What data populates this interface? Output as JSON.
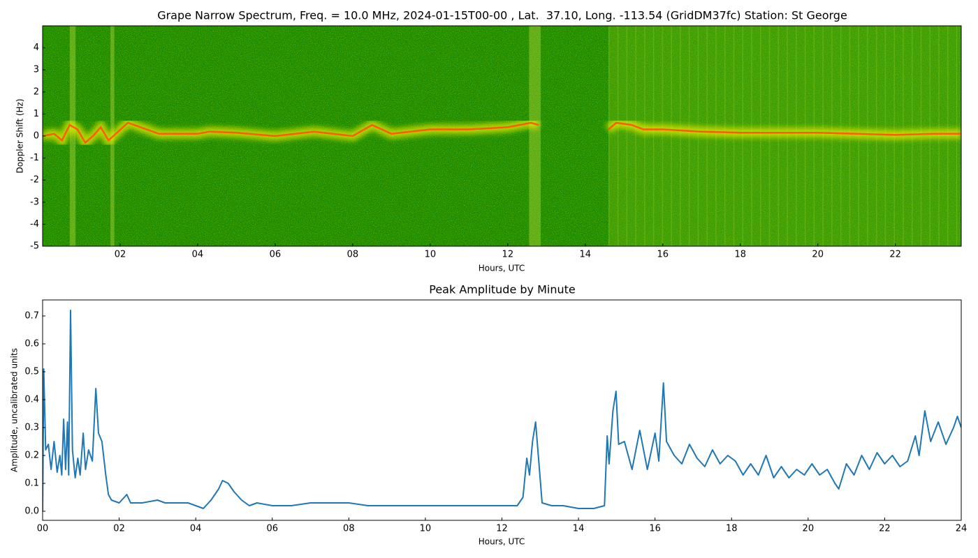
{
  "chart_data": [
    {
      "type": "spectrogram",
      "title": "Grape Narrow Spectrum, Freq. = 10.0 MHz, 2024-01-15T00-00 , Lat.  37.10, Long. -113.54 (GridDM37fc) Station: St George",
      "xlabel": "Hours, UTC",
      "ylabel": "Doppler Shift (Hz)",
      "x": [
        0,
        0.3,
        0.5,
        0.7,
        0.9,
        1.1,
        1.3,
        1.5,
        1.7,
        2.2,
        3,
        4,
        4.3,
        5,
        6,
        7,
        8,
        8.5,
        9,
        10,
        11,
        12,
        12.6,
        12.8,
        13.2,
        14.6,
        14.8,
        15.2,
        15.5,
        16,
        17,
        18,
        19,
        20,
        21,
        22,
        23,
        23.7
      ],
      "values": [
        0,
        0.1,
        -0.2,
        0.5,
        0.3,
        -0.3,
        0,
        0.4,
        -0.2,
        0.6,
        0.1,
        0.1,
        0.2,
        0.15,
        0,
        0.2,
        0,
        0.5,
        0.1,
        0.3,
        0.3,
        0.4,
        0.6,
        0.5,
        null,
        0.3,
        0.6,
        0.5,
        0.3,
        0.3,
        0.2,
        0.15,
        0.15,
        0.15,
        0.1,
        0.05,
        0.1,
        0.1
      ],
      "color": "#ff5a00",
      "background": "#1a8a00",
      "xlim": [
        0,
        23.7
      ],
      "ylim": [
        -5,
        5
      ],
      "xticks": [
        {
          "value": 2,
          "label": "02"
        },
        {
          "value": 4,
          "label": "04"
        },
        {
          "value": 6,
          "label": "06"
        },
        {
          "value": 8,
          "label": "08"
        },
        {
          "value": 10,
          "label": "10"
        },
        {
          "value": 12,
          "label": "12"
        },
        {
          "value": 14,
          "label": "14"
        },
        {
          "value": 16,
          "label": "16"
        },
        {
          "value": 18,
          "label": "18"
        },
        {
          "value": 20,
          "label": "20"
        },
        {
          "value": 22,
          "label": "22"
        }
      ],
      "yticks": [
        -5,
        -4,
        -3,
        -2,
        -1,
        0,
        1,
        2,
        3,
        4
      ]
    },
    {
      "type": "line",
      "title": "Peak Amplitude by Minute",
      "xlabel": "Hours, UTC",
      "ylabel": "Amplitude, uncalibrated units",
      "x": [
        0,
        0.03,
        0.08,
        0.15,
        0.22,
        0.3,
        0.38,
        0.45,
        0.5,
        0.55,
        0.6,
        0.65,
        0.68,
        0.73,
        0.78,
        0.85,
        0.92,
        0.98,
        1.06,
        1.12,
        1.2,
        1.3,
        1.39,
        1.46,
        1.55,
        1.65,
        1.72,
        1.8,
        2,
        2.2,
        2.3,
        2.6,
        3,
        3.2,
        3.5,
        3.8,
        4,
        4.2,
        4.4,
        4.6,
        4.7,
        4.85,
        5,
        5.2,
        5.4,
        5.6,
        6,
        6.5,
        7,
        7.5,
        8,
        8.5,
        9,
        9.5,
        10,
        10.5,
        11,
        11.5,
        12,
        12.4,
        12.55,
        12.65,
        12.72,
        12.8,
        12.88,
        12.95,
        13.05,
        13.3,
        13.6,
        14,
        14.4,
        14.68,
        14.75,
        14.8,
        14.9,
        14.98,
        15.05,
        15.2,
        15.4,
        15.6,
        15.8,
        16,
        16.1,
        16.22,
        16.3,
        16.5,
        16.7,
        16.9,
        17.1,
        17.3,
        17.5,
        17.7,
        17.9,
        18.1,
        18.3,
        18.5,
        18.7,
        18.9,
        19.1,
        19.3,
        19.5,
        19.7,
        19.9,
        20.1,
        20.3,
        20.5,
        20.7,
        20.8,
        21,
        21.2,
        21.4,
        21.6,
        21.8,
        22,
        22.2,
        22.4,
        22.6,
        22.8,
        22.9,
        23.05,
        23.2,
        23.4,
        23.6,
        23.8,
        23.9,
        24
      ],
      "values": [
        0,
        0.51,
        0.22,
        0.24,
        0.15,
        0.25,
        0.14,
        0.2,
        0.13,
        0.33,
        0.15,
        0.32,
        0.13,
        0.72,
        0.22,
        0.12,
        0.19,
        0.13,
        0.28,
        0.15,
        0.22,
        0.18,
        0.44,
        0.28,
        0.25,
        0.13,
        0.06,
        0.04,
        0.03,
        0.06,
        0.03,
        0.03,
        0.04,
        0.03,
        0.03,
        0.03,
        0.02,
        0.01,
        0.04,
        0.08,
        0.11,
        0.1,
        0.07,
        0.04,
        0.02,
        0.03,
        0.02,
        0.02,
        0.03,
        0.03,
        0.03,
        0.02,
        0.02,
        0.02,
        0.02,
        0.02,
        0.02,
        0.02,
        0.02,
        0.02,
        0.05,
        0.19,
        0.13,
        0.25,
        0.32,
        0.2,
        0.03,
        0.02,
        0.02,
        0.01,
        0.01,
        0.02,
        0.27,
        0.17,
        0.36,
        0.43,
        0.24,
        0.25,
        0.15,
        0.29,
        0.15,
        0.28,
        0.18,
        0.46,
        0.25,
        0.2,
        0.17,
        0.24,
        0.19,
        0.16,
        0.22,
        0.17,
        0.2,
        0.18,
        0.13,
        0.17,
        0.13,
        0.2,
        0.12,
        0.16,
        0.12,
        0.15,
        0.13,
        0.17,
        0.13,
        0.15,
        0.1,
        0.08,
        0.17,
        0.13,
        0.2,
        0.15,
        0.21,
        0.17,
        0.2,
        0.16,
        0.18,
        0.27,
        0.2,
        0.36,
        0.25,
        0.32,
        0.24,
        0.3,
        0.34,
        0.3
      ],
      "color": "#1f77b4",
      "xlim": [
        0,
        24
      ],
      "ylim": [
        -0.0325,
        0.7575
      ],
      "xticks": [
        {
          "value": 0,
          "label": "00"
        },
        {
          "value": 2,
          "label": "02"
        },
        {
          "value": 4,
          "label": "04"
        },
        {
          "value": 6,
          "label": "06"
        },
        {
          "value": 8,
          "label": "08"
        },
        {
          "value": 10,
          "label": "10"
        },
        {
          "value": 12,
          "label": "12"
        },
        {
          "value": 14,
          "label": "14"
        },
        {
          "value": 16,
          "label": "16"
        },
        {
          "value": 18,
          "label": "18"
        },
        {
          "value": 20,
          "label": "20"
        },
        {
          "value": 22,
          "label": "22"
        },
        {
          "value": 24,
          "label": "24"
        }
      ],
      "yticks": [
        {
          "value": 0,
          "label": "0.0"
        },
        0.1,
        0.2,
        0.3,
        0.4,
        0.5,
        0.6,
        0.7
      ]
    }
  ]
}
